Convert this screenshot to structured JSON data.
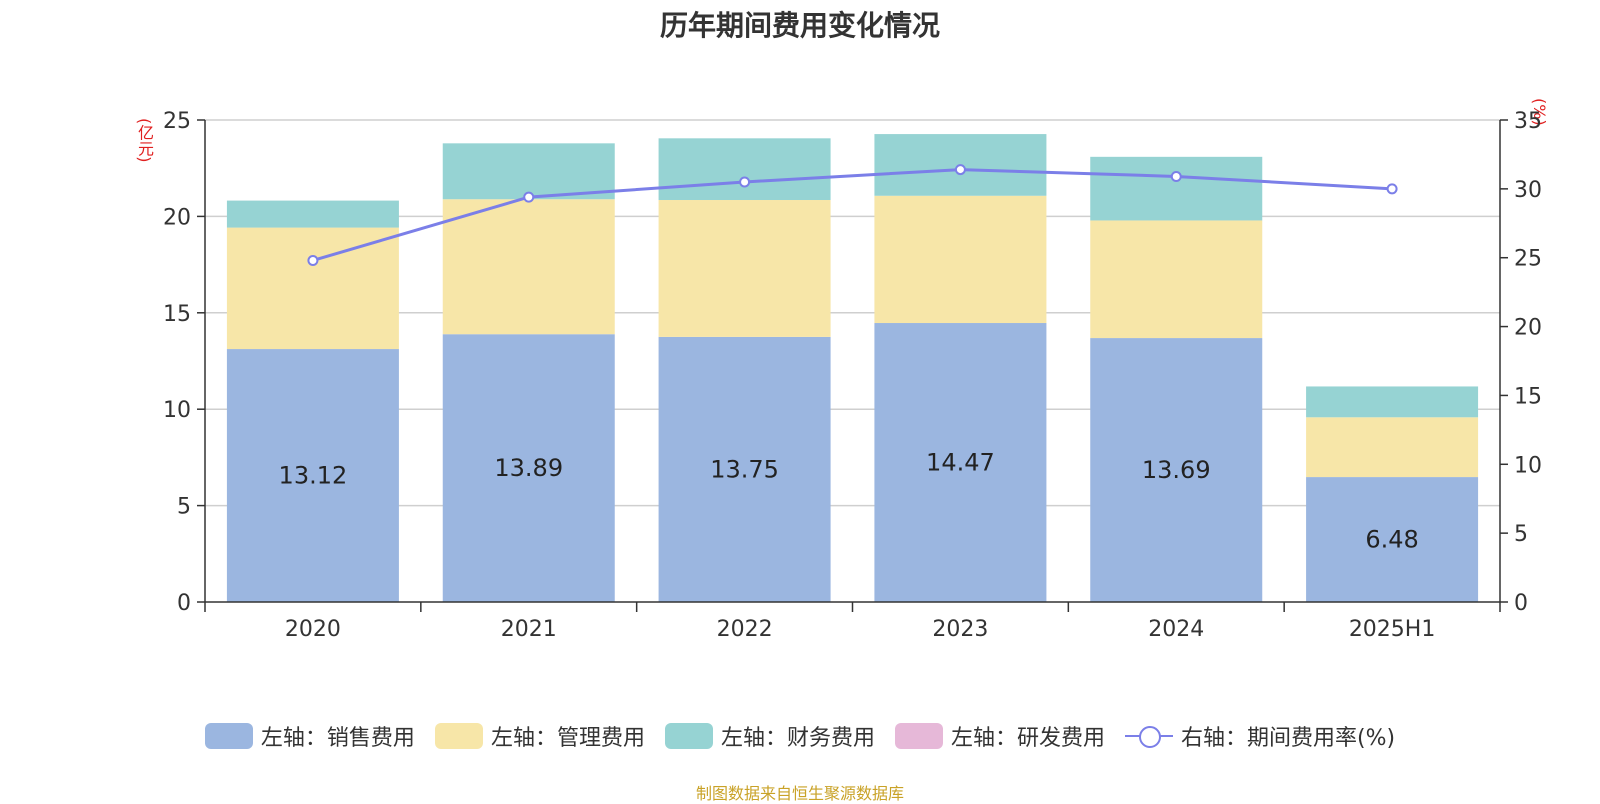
{
  "chart_data": {
    "type": "bar",
    "title": "历年期间费用变化情况",
    "categories": [
      "2020",
      "2021",
      "2022",
      "2023",
      "2024",
      "2025H1"
    ],
    "series": [
      {
        "name": "左轴：销售费用",
        "axis": "left",
        "stack": "total",
        "color": "#9bb6e0",
        "values": [
          13.12,
          13.89,
          13.75,
          14.47,
          13.69,
          6.48
        ]
      },
      {
        "name": "左轴：管理费用",
        "axis": "left",
        "stack": "total",
        "color": "#f7e6a8",
        "values": [
          6.3,
          7.0,
          7.1,
          6.6,
          6.1,
          3.1
        ]
      },
      {
        "name": "左轴：财务费用",
        "axis": "left",
        "stack": "total",
        "color": "#96d3d3",
        "values": [
          1.4,
          2.9,
          3.2,
          3.2,
          3.3,
          1.6
        ]
      },
      {
        "name": "左轴：研发费用",
        "axis": "left",
        "stack": "total",
        "color": "#e6b8d8",
        "values": [
          0,
          0,
          0,
          0,
          0,
          0
        ]
      },
      {
        "name": "右轴：期间费用率(%)",
        "axis": "right",
        "type": "line",
        "color": "#7b7fe8",
        "values": [
          24.8,
          29.4,
          30.5,
          31.4,
          30.9,
          30.0
        ]
      }
    ],
    "bar_labels": [
      "13.12",
      "13.89",
      "13.75",
      "14.47",
      "13.69",
      "6.48"
    ],
    "left_axis": {
      "unit": "(亿元)",
      "ylim": [
        0,
        25
      ],
      "ticks": [
        "0",
        "5",
        "10",
        "15",
        "20",
        "25"
      ]
    },
    "right_axis": {
      "unit": "(%)",
      "ylim": [
        0,
        35
      ],
      "ticks": [
        "0",
        "5",
        "10",
        "15",
        "20",
        "25",
        "30",
        "35"
      ]
    },
    "grid": true,
    "legend_position": "bottom"
  },
  "source_text": "制图数据来自恒生聚源数据库"
}
